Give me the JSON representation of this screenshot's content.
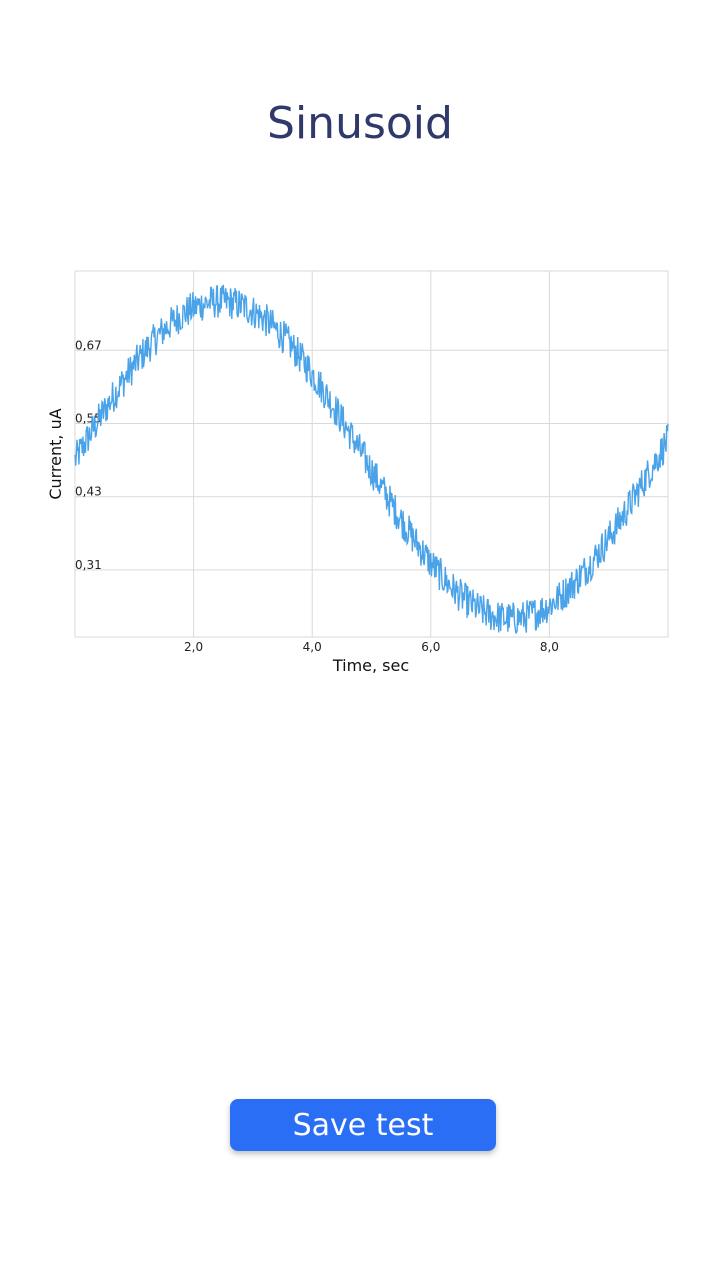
{
  "header": {
    "title": "Sinusoid"
  },
  "chart_data": {
    "type": "line",
    "title": "",
    "xlabel": "Time, sec",
    "ylabel": "Current, uA",
    "xlim": [
      0,
      10
    ],
    "ylim": [
      0.2,
      0.8
    ],
    "x_ticks": [
      2.0,
      4.0,
      6.0,
      8.0
    ],
    "x_tick_labels": [
      "2,0",
      "4,0",
      "6,0",
      "8,0"
    ],
    "y_ticks": [
      0.31,
      0.43,
      0.55,
      0.67
    ],
    "y_tick_labels": [
      "0,31",
      "0,43",
      "0,55",
      "0,67"
    ],
    "grid": true,
    "line_color": "#4aa3e8",
    "series": [
      {
        "model": "sinusoid",
        "amplitude": 0.26,
        "offset": 0.49,
        "period": 9.8,
        "phase_shift": 0.0,
        "noise_amplitude": 0.02,
        "x": [
          0,
          0.5,
          1.0,
          1.5,
          2.0,
          2.5,
          3.0,
          3.5,
          4.0,
          4.5,
          5.0,
          5.5,
          6.0,
          6.5,
          7.0,
          7.5,
          8.0,
          8.5,
          9.0,
          9.5,
          10.0
        ],
        "y": [
          0.49,
          0.57,
          0.64,
          0.7,
          0.74,
          0.75,
          0.73,
          0.69,
          0.62,
          0.55,
          0.47,
          0.4,
          0.33,
          0.27,
          0.24,
          0.24,
          0.26,
          0.31,
          0.37,
          0.44,
          0.52
        ]
      }
    ]
  },
  "actions": {
    "save_label": "Save test"
  },
  "colors": {
    "title": "#2f3a6b",
    "button": "#2a6ef6",
    "grid": "#d9d9d9"
  }
}
